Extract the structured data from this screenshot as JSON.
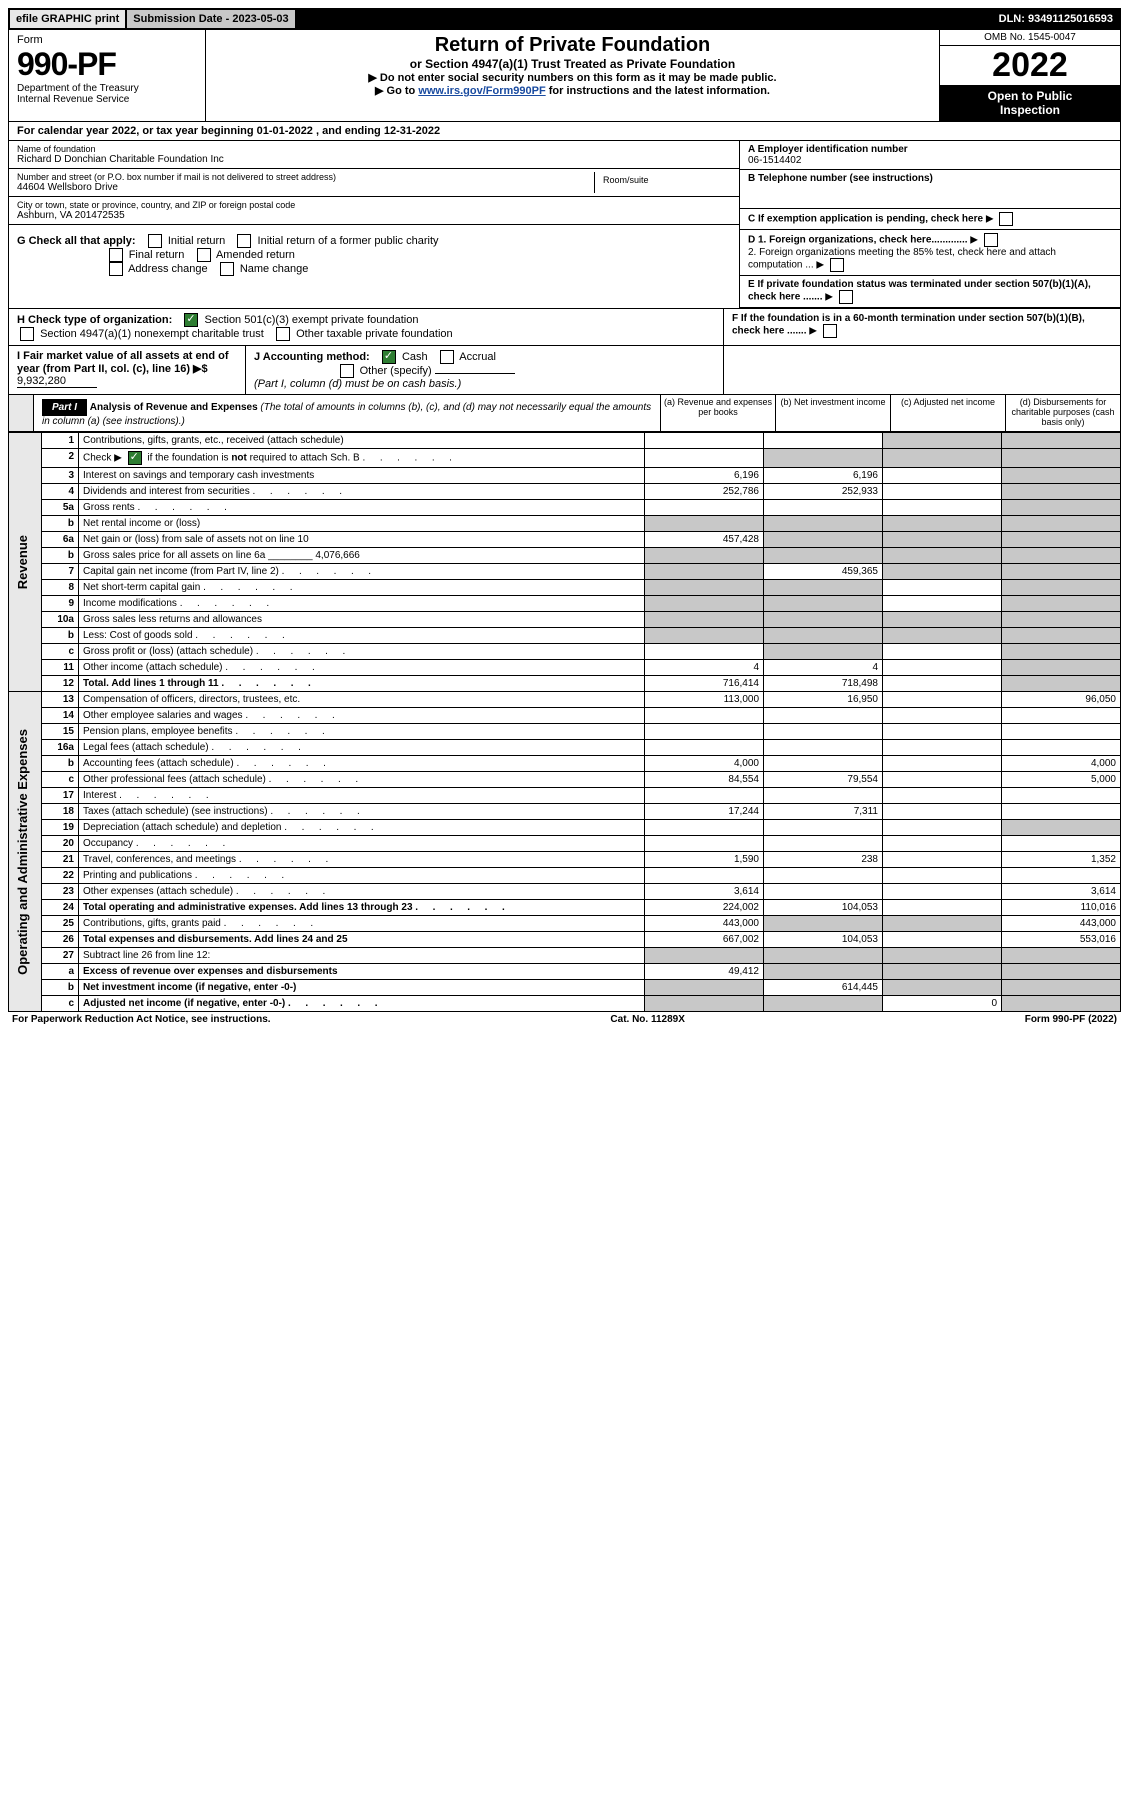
{
  "top": {
    "efile": "efile GRAPHIC print",
    "subdate_label": "Submission Date - ",
    "subdate": "2023-05-03",
    "dln_label": "DLN: ",
    "dln": "93491125016593"
  },
  "header": {
    "form_word": "Form",
    "form_no": "990-PF",
    "dept1": "Department of the Treasury",
    "dept2": "Internal Revenue Service",
    "title": "Return of Private Foundation",
    "subtitle": "or Section 4947(a)(1) Trust Treated as Private Foundation",
    "instr1": "▶ Do not enter social security numbers on this form as it may be made public.",
    "instr2a": "▶ Go to ",
    "instr2_link": "www.irs.gov/Form990PF",
    "instr2b": " for instructions and the latest information.",
    "omb": "OMB No. 1545-0047",
    "year": "2022",
    "otp1": "Open to Public",
    "otp2": "Inspection"
  },
  "calyear": {
    "text_a": "For calendar year 2022, or tax year beginning ",
    "begin": "01-01-2022",
    "text_b": " , and ending ",
    "end": "12-31-2022"
  },
  "info": {
    "name_label": "Name of foundation",
    "name": "Richard D Donchian Charitable Foundation Inc",
    "addr_label": "Number and street (or P.O. box number if mail is not delivered to street address)",
    "addr": "44604 Wellsboro Drive",
    "room_label": "Room/suite",
    "city_label": "City or town, state or province, country, and ZIP or foreign postal code",
    "city": "Ashburn, VA  201472535",
    "ein_label": "A Employer identification number",
    "ein": "06-1514402",
    "tel_label": "B Telephone number (see instructions)",
    "exempt_label": "C If exemption application is pending, check here",
    "d1": "D 1. Foreign organizations, check here.............",
    "d2": "2. Foreign organizations meeting the 85% test, check here and attach computation ...",
    "e": "E If private foundation status was terminated under section 507(b)(1)(A), check here .......",
    "f": "F If the foundation is in a 60-month termination under section 507(b)(1)(B), check here ......."
  },
  "g": {
    "label": "G Check all that apply:",
    "opts": [
      "Initial return",
      "Initial return of a former public charity",
      "Final return",
      "Amended return",
      "Address change",
      "Name change"
    ]
  },
  "h": {
    "label": "H Check type of organization:",
    "opt1": "Section 501(c)(3) exempt private foundation",
    "opt2": "Section 4947(a)(1) nonexempt charitable trust",
    "opt3": "Other taxable private foundation"
  },
  "i": {
    "label": "I Fair market value of all assets at end of year (from Part II, col. (c), line 16) ▶$ ",
    "value": "9,932,280"
  },
  "j": {
    "label": "J Accounting method:",
    "cash": "Cash",
    "accrual": "Accrual",
    "other": "Other (specify)",
    "note": "(Part I, column (d) must be on cash basis.)"
  },
  "part1": {
    "label": "Part I",
    "title": "Analysis of Revenue and Expenses",
    "note": " (The total of amounts in columns (b), (c), and (d) may not necessarily equal the amounts in column (a) (see instructions).)",
    "col_a": "(a) Revenue and expenses per books",
    "col_b": "(b) Net investment income",
    "col_c": "(c) Adjusted net income",
    "col_d": "(d) Disbursements for charitable purposes (cash basis only)"
  },
  "sides": {
    "rev": "Revenue",
    "exp": "Operating and Administrative Expenses"
  },
  "rows": [
    {
      "n": "1",
      "d": "Contributions, gifts, grants, etc., received (attach schedule)",
      "a": "",
      "b": "",
      "c": "g",
      "dd": "g"
    },
    {
      "n": "2",
      "d": "Check ▶ ☑ if the foundation is not required to attach Sch. B",
      "dots": true,
      "a": "",
      "b": "g",
      "c": "g",
      "dd": "g",
      "checked": true
    },
    {
      "n": "3",
      "d": "Interest on savings and temporary cash investments",
      "a": "6,196",
      "b": "6,196",
      "c": "",
      "dd": "g"
    },
    {
      "n": "4",
      "d": "Dividends and interest from securities",
      "dots": true,
      "a": "252,786",
      "b": "252,933",
      "c": "",
      "dd": "g"
    },
    {
      "n": "5a",
      "d": "Gross rents",
      "dots": true,
      "a": "",
      "b": "",
      "c": "",
      "dd": "g"
    },
    {
      "n": "b",
      "d": "Net rental income or (loss)",
      "a": "g",
      "b": "g",
      "c": "g",
      "dd": "g"
    },
    {
      "n": "6a",
      "d": "Net gain or (loss) from sale of assets not on line 10",
      "a": "457,428",
      "b": "g",
      "c": "g",
      "dd": "g"
    },
    {
      "n": "b",
      "d": "Gross sales price for all assets on line 6a ________ 4,076,666",
      "a": "g",
      "b": "g",
      "c": "g",
      "dd": "g"
    },
    {
      "n": "7",
      "d": "Capital gain net income (from Part IV, line 2)",
      "dots": true,
      "a": "g",
      "b": "459,365",
      "c": "g",
      "dd": "g"
    },
    {
      "n": "8",
      "d": "Net short-term capital gain",
      "dots": true,
      "a": "g",
      "b": "g",
      "c": "",
      "dd": "g"
    },
    {
      "n": "9",
      "d": "Income modifications",
      "dots": true,
      "a": "g",
      "b": "g",
      "c": "",
      "dd": "g"
    },
    {
      "n": "10a",
      "d": "Gross sales less returns and allowances",
      "a": "g",
      "b": "g",
      "c": "g",
      "dd": "g"
    },
    {
      "n": "b",
      "d": "Less: Cost of goods sold",
      "dots": true,
      "a": "g",
      "b": "g",
      "c": "g",
      "dd": "g"
    },
    {
      "n": "c",
      "d": "Gross profit or (loss) (attach schedule)",
      "dots": true,
      "a": "",
      "b": "g",
      "c": "",
      "dd": "g"
    },
    {
      "n": "11",
      "d": "Other income (attach schedule)",
      "dots": true,
      "a": "4",
      "b": "4",
      "c": "",
      "dd": "g"
    },
    {
      "n": "12",
      "d": "Total. Add lines 1 through 11",
      "dots": true,
      "bold": true,
      "a": "716,414",
      "b": "718,498",
      "c": "",
      "dd": "g"
    },
    {
      "n": "13",
      "d": "Compensation of officers, directors, trustees, etc.",
      "a": "113,000",
      "b": "16,950",
      "c": "",
      "dd": "96,050"
    },
    {
      "n": "14",
      "d": "Other employee salaries and wages",
      "dots": true,
      "a": "",
      "b": "",
      "c": "",
      "dd": ""
    },
    {
      "n": "15",
      "d": "Pension plans, employee benefits",
      "dots": true,
      "a": "",
      "b": "",
      "c": "",
      "dd": ""
    },
    {
      "n": "16a",
      "d": "Legal fees (attach schedule)",
      "dots": true,
      "a": "",
      "b": "",
      "c": "",
      "dd": ""
    },
    {
      "n": "b",
      "d": "Accounting fees (attach schedule)",
      "dots": true,
      "a": "4,000",
      "b": "",
      "c": "",
      "dd": "4,000"
    },
    {
      "n": "c",
      "d": "Other professional fees (attach schedule)",
      "dots": true,
      "a": "84,554",
      "b": "79,554",
      "c": "",
      "dd": "5,000"
    },
    {
      "n": "17",
      "d": "Interest",
      "dots": true,
      "a": "",
      "b": "",
      "c": "",
      "dd": ""
    },
    {
      "n": "18",
      "d": "Taxes (attach schedule) (see instructions)",
      "dots": true,
      "a": "17,244",
      "b": "7,311",
      "c": "",
      "dd": ""
    },
    {
      "n": "19",
      "d": "Depreciation (attach schedule) and depletion",
      "dots": true,
      "a": "",
      "b": "",
      "c": "",
      "dd": "g"
    },
    {
      "n": "20",
      "d": "Occupancy",
      "dots": true,
      "a": "",
      "b": "",
      "c": "",
      "dd": ""
    },
    {
      "n": "21",
      "d": "Travel, conferences, and meetings",
      "dots": true,
      "a": "1,590",
      "b": "238",
      "c": "",
      "dd": "1,352"
    },
    {
      "n": "22",
      "d": "Printing and publications",
      "dots": true,
      "a": "",
      "b": "",
      "c": "",
      "dd": ""
    },
    {
      "n": "23",
      "d": "Other expenses (attach schedule)",
      "dots": true,
      "a": "3,614",
      "b": "",
      "c": "",
      "dd": "3,614"
    },
    {
      "n": "24",
      "d": "Total operating and administrative expenses. Add lines 13 through 23",
      "dots": true,
      "bold": true,
      "a": "224,002",
      "b": "104,053",
      "c": "",
      "dd": "110,016"
    },
    {
      "n": "25",
      "d": "Contributions, gifts, grants paid",
      "dots": true,
      "a": "443,000",
      "b": "g",
      "c": "g",
      "dd": "443,000"
    },
    {
      "n": "26",
      "d": "Total expenses and disbursements. Add lines 24 and 25",
      "bold": true,
      "a": "667,002",
      "b": "104,053",
      "c": "",
      "dd": "553,016"
    },
    {
      "n": "27",
      "d": "Subtract line 26 from line 12:",
      "a": "g",
      "b": "g",
      "c": "g",
      "dd": "g"
    },
    {
      "n": "a",
      "d": "Excess of revenue over expenses and disbursements",
      "bold": true,
      "a": "49,412",
      "b": "g",
      "c": "g",
      "dd": "g"
    },
    {
      "n": "b",
      "d": "Net investment income (if negative, enter -0-)",
      "bold": true,
      "a": "g",
      "b": "614,445",
      "c": "g",
      "dd": "g"
    },
    {
      "n": "c",
      "d": "Adjusted net income (if negative, enter -0-)",
      "dots": true,
      "bold": true,
      "a": "g",
      "b": "g",
      "c": "0",
      "dd": "g"
    }
  ],
  "footer": {
    "left": "For Paperwork Reduction Act Notice, see instructions.",
    "mid": "Cat. No. 11289X",
    "right": "Form 990-PF (2022)"
  }
}
